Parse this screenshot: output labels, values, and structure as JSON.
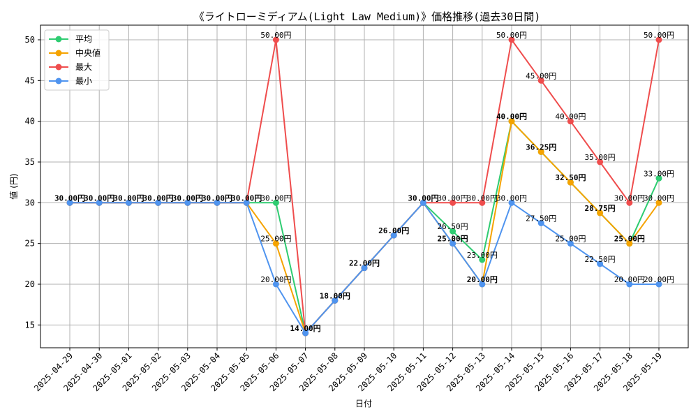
{
  "chart_data": {
    "type": "line",
    "title": "《ライトローミディアム(Light Law Medium)》価格推移(過去30日間)",
    "xlabel": "日付",
    "ylabel": "値 (円)",
    "ylim": [
      12.2,
      51.8
    ],
    "yticks": [
      15,
      20,
      25,
      30,
      35,
      40,
      45,
      50
    ],
    "grid": true,
    "legend_position": "top-left",
    "categories": [
      "2025-04-29",
      "2025-04-30",
      "2025-05-01",
      "2025-05-02",
      "2025-05-03",
      "2025-05-04",
      "2025-05-05",
      "2025-05-06",
      "2025-05-07",
      "2025-05-08",
      "2025-05-09",
      "2025-05-10",
      "2025-05-11",
      "2025-05-12",
      "2025-05-13",
      "2025-05-14",
      "2025-05-15",
      "2025-05-16",
      "2025-05-17",
      "2025-05-18",
      "2025-05-19"
    ],
    "series": [
      {
        "name": "平均",
        "color": "#2ecc71",
        "values": [
          30,
          30,
          30,
          30,
          30,
          30,
          30,
          30,
          14,
          18,
          22,
          26,
          30,
          26.5,
          23,
          40,
          36.25,
          32.5,
          28.75,
          25,
          33
        ]
      },
      {
        "name": "中央値",
        "color": "#f5a300",
        "values": [
          30,
          30,
          30,
          30,
          30,
          30,
          30,
          25,
          14,
          18,
          22,
          26,
          30,
          25,
          20,
          40,
          36.25,
          32.5,
          28.75,
          25,
          30
        ]
      },
      {
        "name": "最大",
        "color": "#ef4d4d",
        "values": [
          30,
          30,
          30,
          30,
          30,
          30,
          30,
          50,
          14,
          18,
          22,
          26,
          30,
          30,
          30,
          50,
          45,
          40,
          35,
          30,
          50
        ]
      },
      {
        "name": "最小",
        "color": "#4f94ef",
        "values": [
          30,
          30,
          30,
          30,
          30,
          30,
          30,
          20,
          14,
          18,
          22,
          26,
          30,
          25,
          20,
          30,
          27.5,
          25,
          22.5,
          20,
          20
        ]
      }
    ],
    "data_labels": [
      {
        "text": "30.00円",
        "x": "2025-04-29",
        "y": 30,
        "bold": true
      },
      {
        "text": "30.00円",
        "x": "2025-04-30",
        "y": 30,
        "bold": true
      },
      {
        "text": "30.00円",
        "x": "2025-05-01",
        "y": 30,
        "bold": true
      },
      {
        "text": "30.00円",
        "x": "2025-05-02",
        "y": 30,
        "bold": true
      },
      {
        "text": "30.00円",
        "x": "2025-05-03",
        "y": 30,
        "bold": true
      },
      {
        "text": "30.00円",
        "x": "2025-05-04",
        "y": 30,
        "bold": true
      },
      {
        "text": "30.00円",
        "x": "2025-05-05",
        "y": 30,
        "bold": true
      },
      {
        "text": "50.00円",
        "x": "2025-05-06",
        "y": 50
      },
      {
        "text": "30.00円",
        "x": "2025-05-06",
        "y": 30
      },
      {
        "text": "25.00円",
        "x": "2025-05-06",
        "y": 25
      },
      {
        "text": "20.00円",
        "x": "2025-05-06",
        "y": 20
      },
      {
        "text": "14.00円",
        "x": "2025-05-07",
        "y": 14,
        "bold": true
      },
      {
        "text": "18.00円",
        "x": "2025-05-08",
        "y": 18,
        "bold": true
      },
      {
        "text": "22.00円",
        "x": "2025-05-09",
        "y": 22,
        "bold": true
      },
      {
        "text": "26.00円",
        "x": "2025-05-10",
        "y": 26,
        "bold": true
      },
      {
        "text": "30.00円",
        "x": "2025-05-11",
        "y": 30,
        "bold": true
      },
      {
        "text": "30.00円",
        "x": "2025-05-12",
        "y": 30
      },
      {
        "text": "26.50円",
        "x": "2025-05-12",
        "y": 26.5
      },
      {
        "text": "25.00円",
        "x": "2025-05-12",
        "y": 25,
        "bold": true
      },
      {
        "text": "30.00円",
        "x": "2025-05-13",
        "y": 30
      },
      {
        "text": "23.00円",
        "x": "2025-05-13",
        "y": 23
      },
      {
        "text": "20.00円",
        "x": "2025-05-13",
        "y": 20,
        "bold": true
      },
      {
        "text": "50.00円",
        "x": "2025-05-14",
        "y": 50
      },
      {
        "text": "40.00円",
        "x": "2025-05-14",
        "y": 40,
        "bold": true
      },
      {
        "text": "30.00円",
        "x": "2025-05-14",
        "y": 30
      },
      {
        "text": "45.00円",
        "x": "2025-05-15",
        "y": 45
      },
      {
        "text": "36.25円",
        "x": "2025-05-15",
        "y": 36.25,
        "bold": true
      },
      {
        "text": "27.50円",
        "x": "2025-05-15",
        "y": 27.5
      },
      {
        "text": "40.00円",
        "x": "2025-05-16",
        "y": 40
      },
      {
        "text": "32.50円",
        "x": "2025-05-16",
        "y": 32.5,
        "bold": true
      },
      {
        "text": "25.00円",
        "x": "2025-05-16",
        "y": 25
      },
      {
        "text": "35.00円",
        "x": "2025-05-17",
        "y": 35
      },
      {
        "text": "28.75円",
        "x": "2025-05-17",
        "y": 28.75,
        "bold": true
      },
      {
        "text": "22.50円",
        "x": "2025-05-17",
        "y": 22.5
      },
      {
        "text": "30.00円",
        "x": "2025-05-18",
        "y": 30
      },
      {
        "text": "25.00円",
        "x": "2025-05-18",
        "y": 25,
        "bold": true
      },
      {
        "text": "20.00円",
        "x": "2025-05-18",
        "y": 20
      },
      {
        "text": "50.00円",
        "x": "2025-05-19",
        "y": 50
      },
      {
        "text": "33.00円",
        "x": "2025-05-19",
        "y": 33
      },
      {
        "text": "30.00円",
        "x": "2025-05-19",
        "y": 30
      },
      {
        "text": "20.00円",
        "x": "2025-05-19",
        "y": 20
      }
    ]
  }
}
